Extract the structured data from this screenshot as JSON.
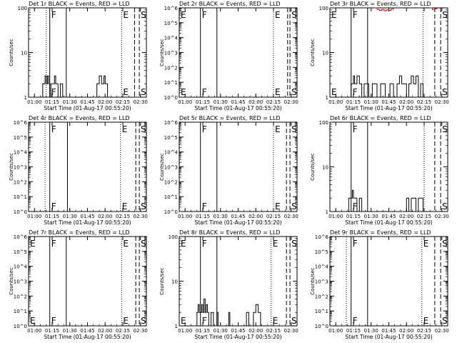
{
  "chart_data": [
    {
      "type": "line",
      "title": "Det 1r BLACK = Events, RED = LLD",
      "xlabel": "Start Time (01-Aug-17 00:55:20)",
      "ylabel": "Counts/sec",
      "y_scale": "log",
      "xlim": [
        "00:55",
        "02:35"
      ],
      "ylim": [
        1,
        100
      ],
      "x_ticks": [
        "01:00",
        "01:15",
        "01:30",
        "01:45",
        "02:00",
        "02:15",
        "02:30"
      ],
      "y_ticks": [
        "1",
        "10",
        "100"
      ],
      "markers": [
        {
          "label": "F",
          "time": "01:13",
          "style": "solid"
        },
        {
          "label": "",
          "time": "01:27",
          "style": "solid"
        },
        {
          "label": "",
          "time": "01:10",
          "style": "dotted"
        },
        {
          "label": "E",
          "time": "02:14",
          "style": "dotted"
        },
        {
          "label": "",
          "time": "02:25",
          "style": "dashed"
        },
        {
          "label": "S",
          "time": "02:29",
          "style": "dashed"
        }
      ],
      "series": [
        {
          "color": "#000000",
          "points": [
            [
              "01:06",
              1
            ],
            [
              "01:07",
              2
            ],
            [
              "01:08",
              2
            ],
            [
              "01:09",
              3
            ],
            [
              "01:10",
              2
            ],
            [
              "01:11",
              3
            ],
            [
              "01:12",
              2
            ],
            [
              "01:13",
              1
            ],
            [
              "01:14",
              2
            ],
            [
              "01:15",
              2
            ],
            [
              "01:17",
              3
            ],
            [
              "01:18",
              2
            ],
            [
              "01:20",
              1
            ],
            [
              "01:22",
              2
            ],
            [
              "01:24",
              1
            ],
            [
              "01:30",
              1
            ],
            [
              "01:45",
              1
            ],
            [
              "01:53",
              2
            ],
            [
              "01:55",
              3
            ],
            [
              "01:57",
              2
            ],
            [
              "01:59",
              3
            ],
            [
              "02:00",
              2
            ],
            [
              "02:02",
              1
            ],
            [
              "02:06",
              1
            ]
          ]
        }
      ]
    },
    {
      "type": "line",
      "title": "Det 2r BLACK = Events, RED = LLD",
      "xlabel": "Start Time (01-Aug-17 00:55:20)",
      "ylabel": "Counts/sec",
      "y_scale": "log",
      "xlim": [
        "00:55",
        "02:35"
      ],
      "ylim": [
        1,
        1000000
      ],
      "x_ticks": [
        "01:00",
        "01:15",
        "01:30",
        "01:45",
        "02:00",
        "02:15",
        "02:30"
      ],
      "y_ticks": [
        "10^0",
        "10^1",
        "10^2",
        "10^3",
        "10^4",
        "10^5",
        "10^6"
      ],
      "markers": [
        {
          "label": "E",
          "time": "00:55",
          "style": "solid"
        },
        {
          "label": "F",
          "time": "01:13",
          "style": "solid"
        },
        {
          "label": "",
          "time": "01:27",
          "style": "solid"
        },
        {
          "label": "E",
          "time": "02:15",
          "style": "dotted"
        },
        {
          "label": "",
          "time": "02:27",
          "style": "dashed"
        },
        {
          "label": "S",
          "time": "02:29",
          "style": "dashed"
        }
      ],
      "series": []
    },
    {
      "type": "line",
      "title": "Det 3r BLACK = Events, RED = LLD",
      "xlabel": "Start Time (01-Aug-17 00:55:20)",
      "ylabel": "Counts/sec",
      "y_scale": "log",
      "xlim": [
        "00:55",
        "02:35"
      ],
      "ylim": [
        1,
        100
      ],
      "x_ticks": [
        "01:00",
        "01:15",
        "01:30",
        "01:45",
        "02:00",
        "02:15",
        "02:30"
      ],
      "y_ticks": [
        "1",
        "10",
        "100"
      ],
      "markers": [
        {
          "label": "E",
          "time": "00:55",
          "style": "solid"
        },
        {
          "label": "F",
          "time": "01:13",
          "style": "solid"
        },
        {
          "label": "",
          "time": "01:27",
          "style": "solid"
        },
        {
          "label": "",
          "time": "02:14",
          "style": "dotted"
        },
        {
          "label": "",
          "time": "02:24",
          "style": "dashed"
        },
        {
          "label": "S",
          "time": "02:29",
          "style": "dashed"
        }
      ],
      "series": [
        {
          "color": "#000000",
          "points": [
            [
              "01:12",
              1
            ],
            [
              "01:13",
              2
            ],
            [
              "01:14",
              2
            ],
            [
              "01:15",
              3
            ],
            [
              "01:16",
              2
            ],
            [
              "01:18",
              3
            ],
            [
              "01:20",
              2
            ],
            [
              "01:22",
              1
            ],
            [
              "01:24",
              2
            ],
            [
              "01:26",
              2
            ],
            [
              "01:28",
              1
            ],
            [
              "01:31",
              2
            ],
            [
              "01:33",
              2
            ],
            [
              "01:35",
              1
            ],
            [
              "01:38",
              2
            ],
            [
              "01:40",
              2
            ],
            [
              "01:42",
              1
            ],
            [
              "01:46",
              2
            ],
            [
              "01:49",
              1
            ],
            [
              "01:52",
              2
            ],
            [
              "01:54",
              3
            ],
            [
              "01:56",
              2
            ],
            [
              "01:58",
              2
            ],
            [
              "02:00",
              1
            ],
            [
              "02:02",
              2
            ],
            [
              "02:04",
              3
            ],
            [
              "02:06",
              2
            ],
            [
              "02:08",
              3
            ],
            [
              "02:10",
              1
            ],
            [
              "02:12",
              2
            ],
            [
              "02:14",
              1
            ]
          ]
        },
        {
          "color": "#cc0000",
          "points": [
            [
              "01:33",
              100
            ],
            [
              "01:35",
              92
            ],
            [
              "01:37",
              88
            ],
            [
              "01:39",
              92
            ],
            [
              "01:41",
              86
            ],
            [
              "01:43",
              90
            ],
            [
              "01:45",
              88
            ],
            [
              "01:47",
              94
            ],
            [
              "01:49",
              100
            ]
          ]
        },
        {
          "color": "#cc0000",
          "points": [
            [
              "02:20",
              100
            ],
            [
              "02:22",
              92
            ],
            [
              "02:24",
              96
            ],
            [
              "02:26",
              100
            ]
          ]
        }
      ]
    },
    {
      "type": "line",
      "title": "Det 4r BLACK = Events, RED = LLD",
      "xlabel": "Start Time (01-Aug-17 00:55:20)",
      "ylabel": "Counts/sec",
      "y_scale": "log",
      "xlim": [
        "00:55",
        "02:35"
      ],
      "ylim": [
        1,
        1000000
      ],
      "x_ticks": [
        "01:00",
        "01:15",
        "01:30",
        "01:45",
        "02:00",
        "02:15",
        "02:30"
      ],
      "y_ticks": [
        "10^0",
        "10^1",
        "10^2",
        "10^3",
        "10^4",
        "10^5",
        "10^6"
      ],
      "markers": [
        {
          "label": "",
          "time": "01:09",
          "style": "dotted"
        },
        {
          "label": "F",
          "time": "01:13",
          "style": "solid"
        },
        {
          "label": "",
          "time": "01:28",
          "style": "solid"
        },
        {
          "label": "E",
          "time": "02:13",
          "style": "dotted"
        },
        {
          "label": "",
          "time": "02:26",
          "style": "dashed"
        },
        {
          "label": "S",
          "time": "02:29",
          "style": "dashed"
        }
      ],
      "series": []
    },
    {
      "type": "line",
      "title": "Det 5r BLACK = Events, RED = LLD",
      "xlabel": "Start Time (01-Aug-17 00:55:20)",
      "ylabel": "Counts/sec",
      "y_scale": "log",
      "xlim": [
        "00:55",
        "02:35"
      ],
      "ylim": [
        1,
        1000000
      ],
      "x_ticks": [
        "01:00",
        "01:15",
        "01:30",
        "01:45",
        "02:00",
        "02:15",
        "02:30"
      ],
      "y_ticks": [
        "10^0",
        "10^1",
        "10^2",
        "10^3",
        "10^4",
        "10^5",
        "10^6"
      ],
      "markers": [
        {
          "label": "F",
          "time": "01:13",
          "style": "solid"
        },
        {
          "label": "",
          "time": "01:27",
          "style": "solid"
        },
        {
          "label": "E",
          "time": "02:15",
          "style": "dotted"
        },
        {
          "label": "",
          "time": "02:26",
          "style": "dashed"
        },
        {
          "label": "S",
          "time": "02:29",
          "style": "dashed"
        }
      ],
      "series": []
    },
    {
      "type": "line",
      "title": "Det 6r BLACK = Events, RED = LLD",
      "xlabel": "Start Time (01-Aug-17 00:55:20)",
      "ylabel": "Counts/sec",
      "y_scale": "log",
      "xlim": [
        "00:55",
        "02:35"
      ],
      "ylim": [
        1,
        100
      ],
      "x_ticks": [
        "01:00",
        "01:15",
        "01:30",
        "01:45",
        "02:00",
        "02:15",
        "02:30"
      ],
      "y_ticks": [
        "1",
        "10",
        "100"
      ],
      "markers": [
        {
          "label": "F",
          "time": "01:13",
          "style": "solid"
        },
        {
          "label": "",
          "time": "01:27",
          "style": "solid"
        },
        {
          "label": "",
          "time": "02:15",
          "style": "dotted"
        },
        {
          "label": "",
          "time": "02:24",
          "style": "dashed"
        },
        {
          "label": "S",
          "time": "02:29",
          "style": "dashed"
        }
      ],
      "series": [
        {
          "color": "#000000",
          "points": [
            [
              "01:10",
              1
            ],
            [
              "01:11",
              2
            ],
            [
              "01:13",
              2
            ],
            [
              "01:14",
              3
            ],
            [
              "01:15",
              2
            ],
            [
              "01:16",
              2
            ],
            [
              "01:18",
              1
            ],
            [
              "01:20",
              2
            ],
            [
              "01:22",
              1
            ],
            [
              "01:30",
              1
            ],
            [
              "01:45",
              1
            ],
            [
              "01:58",
              1
            ],
            [
              "02:00",
              2
            ],
            [
              "02:02",
              1
            ],
            [
              "02:04",
              2
            ],
            [
              "02:06",
              2
            ],
            [
              "02:08",
              1
            ],
            [
              "02:10",
              2
            ],
            [
              "02:12",
              2
            ],
            [
              "02:14",
              1
            ]
          ]
        }
      ]
    },
    {
      "type": "line",
      "title": "Det 7r BLACK = Events, RED = LLD",
      "xlabel": "Start Time (01-Aug-17 00:55:20)",
      "ylabel": "Counts/sec",
      "y_scale": "log",
      "xlim": [
        "00:55",
        "02:35"
      ],
      "ylim": [
        1,
        1000000
      ],
      "x_ticks": [
        "01:00",
        "01:15",
        "01:30",
        "01:45",
        "02:00",
        "02:15",
        "02:30"
      ],
      "y_ticks": [
        "10^0",
        "10^1",
        "10^2",
        "10^3",
        "10^4",
        "10^5",
        "10^6"
      ],
      "markers": [
        {
          "label": "E",
          "time": "00:55",
          "style": "solid"
        },
        {
          "label": "F",
          "time": "01:13",
          "style": "solid"
        },
        {
          "label": "",
          "time": "01:27",
          "style": "solid"
        },
        {
          "label": "E",
          "time": "02:14",
          "style": "dotted"
        },
        {
          "label": "",
          "time": "02:26",
          "style": "dashed"
        },
        {
          "label": "S",
          "time": "02:29",
          "style": "dashed"
        }
      ],
      "series": []
    },
    {
      "type": "line",
      "title": "Det 8r BLACK = Events, RED = LLD",
      "xlabel": "Start Time (01-Aug-17 00:55:20)",
      "ylabel": "Counts/sec",
      "y_scale": "log",
      "xlim": [
        "00:55",
        "02:35"
      ],
      "ylim": [
        1,
        100
      ],
      "x_ticks": [
        "01:00",
        "01:15",
        "01:30",
        "01:45",
        "02:00",
        "02:15",
        "02:30"
      ],
      "y_ticks": [
        "1",
        "10",
        "100"
      ],
      "markers": [
        {
          "label": "E",
          "time": "00:55",
          "style": "solid"
        },
        {
          "label": "F",
          "time": "01:13",
          "style": "solid"
        },
        {
          "label": "",
          "time": "01:27",
          "style": "solid"
        },
        {
          "label": "E",
          "time": "02:13",
          "style": "dotted"
        },
        {
          "label": "",
          "time": "02:26",
          "style": "dashed"
        },
        {
          "label": "S",
          "time": "02:29",
          "style": "dashed"
        }
      ],
      "series": [
        {
          "color": "#000000",
          "points": [
            [
              "01:08",
              1
            ],
            [
              "01:10",
              2
            ],
            [
              "01:11",
              3
            ],
            [
              "01:12",
              2
            ],
            [
              "01:14",
              3
            ],
            [
              "01:15",
              2
            ],
            [
              "01:16",
              4
            ],
            [
              "01:17",
              2
            ],
            [
              "01:18",
              3
            ],
            [
              "01:19",
              2
            ],
            [
              "01:20",
              1
            ],
            [
              "01:22",
              2
            ],
            [
              "01:24",
              1
            ],
            [
              "01:27",
              2
            ],
            [
              "01:28",
              1
            ],
            [
              "01:35",
              1
            ],
            [
              "01:37",
              2
            ],
            [
              "01:38",
              1
            ],
            [
              "01:50",
              1
            ],
            [
              "01:52",
              2
            ],
            [
              "01:54",
              1
            ],
            [
              "01:58",
              2
            ],
            [
              "02:00",
              3
            ],
            [
              "02:02",
              2
            ],
            [
              "02:04",
              1
            ]
          ]
        }
      ]
    },
    {
      "type": "line",
      "title": "Det 9r BLACK = Events, RED = LLD",
      "xlabel": "Start Time (01-Aug-17 00:55:20)",
      "ylabel": "Counts/sec",
      "y_scale": "log",
      "xlim": [
        "00:55",
        "02:35"
      ],
      "ylim": [
        1,
        1000000
      ],
      "x_ticks": [
        "01:00",
        "01:15",
        "01:30",
        "01:45",
        "02:00",
        "02:15",
        "02:30"
      ],
      "y_ticks": [
        "10^0",
        "10^1",
        "10^2",
        "10^3",
        "10^4",
        "10^5",
        "10^6"
      ],
      "markers": [
        {
          "label": "",
          "time": "01:09",
          "style": "dotted"
        },
        {
          "label": "F",
          "time": "01:13",
          "style": "solid"
        },
        {
          "label": "",
          "time": "01:27",
          "style": "solid"
        },
        {
          "label": "E",
          "time": "02:13",
          "style": "dotted"
        },
        {
          "label": "",
          "time": "02:24",
          "style": "dashed"
        },
        {
          "label": "S",
          "time": "02:29",
          "style": "dashed"
        }
      ],
      "series": []
    }
  ]
}
